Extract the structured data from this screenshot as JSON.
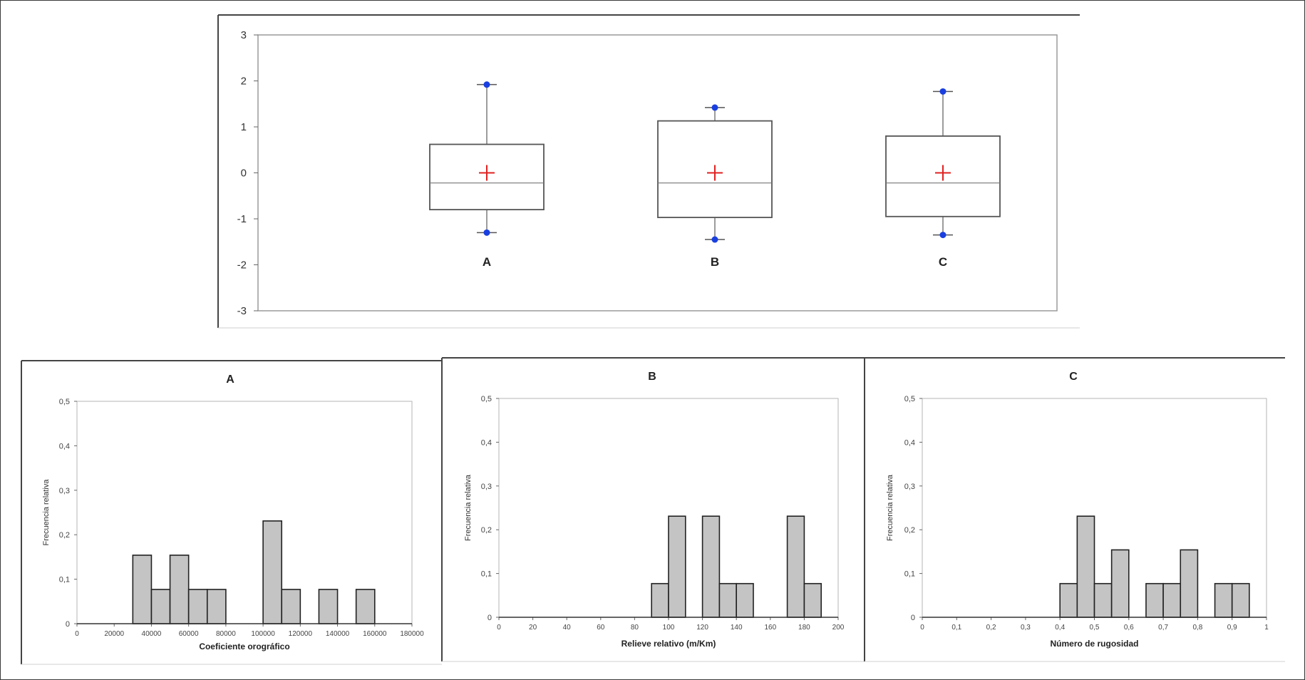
{
  "chart_data": [
    {
      "type": "box",
      "yticks": [
        "3",
        "2",
        "1",
        "0",
        "-1",
        "-2",
        "-3"
      ],
      "ylim": [
        -3,
        3
      ],
      "grid": false,
      "categories": [
        "A",
        "B",
        "C"
      ],
      "boxes": [
        {
          "label": "A",
          "min": -1.3,
          "q1": -0.8,
          "median": -0.22,
          "q3": 0.62,
          "max": 1.92,
          "mean": 0.0
        },
        {
          "label": "B",
          "min": -1.45,
          "q1": -0.97,
          "median": -0.22,
          "q3": 1.13,
          "max": 1.42,
          "mean": 0.0
        },
        {
          "label": "C",
          "min": -1.35,
          "q1": -0.95,
          "median": -0.22,
          "q3": 0.8,
          "max": 1.77,
          "mean": 0.0
        }
      ],
      "colors": {
        "whisker_end": "#1a3fe0",
        "mean_marker": "#e02020",
        "box": "#555555"
      }
    },
    {
      "type": "bar",
      "title": "A",
      "xlabel": "Coeficiente orográfico",
      "ylabel": "Frecuencia relativa",
      "yticks": [
        "0,5",
        "0,4",
        "0,3",
        "0,2",
        "0,1",
        "0"
      ],
      "ylim": [
        0,
        0.5
      ],
      "xticks": [
        "0",
        "20000",
        "40000",
        "60000",
        "80000",
        "100000",
        "120000",
        "140000",
        "160000",
        "180000"
      ],
      "xlim": [
        0,
        180000
      ],
      "bins": [
        {
          "x0": 30000,
          "x1": 40000,
          "value": 0.154
        },
        {
          "x0": 40000,
          "x1": 50000,
          "value": 0.077
        },
        {
          "x0": 50000,
          "x1": 60000,
          "value": 0.154
        },
        {
          "x0": 60000,
          "x1": 70000,
          "value": 0.077
        },
        {
          "x0": 70000,
          "x1": 80000,
          "value": 0.077
        },
        {
          "x0": 100000,
          "x1": 110000,
          "value": 0.231
        },
        {
          "x0": 110000,
          "x1": 120000,
          "value": 0.077
        },
        {
          "x0": 130000,
          "x1": 140000,
          "value": 0.077
        },
        {
          "x0": 150000,
          "x1": 160000,
          "value": 0.077
        }
      ]
    },
    {
      "type": "bar",
      "title": "B",
      "xlabel": "Relieve relativo (m/Km)",
      "ylabel": "Frecuencia relativa",
      "yticks": [
        "0,5",
        "0,4",
        "0,3",
        "0,2",
        "0,1",
        "0"
      ],
      "ylim": [
        0,
        0.5
      ],
      "xticks": [
        "0",
        "20",
        "40",
        "60",
        "80",
        "100",
        "120",
        "140",
        "160",
        "180",
        "200"
      ],
      "xlim": [
        0,
        200
      ],
      "bins": [
        {
          "x0": 90,
          "x1": 100,
          "value": 0.077
        },
        {
          "x0": 100,
          "x1": 110,
          "value": 0.231
        },
        {
          "x0": 120,
          "x1": 130,
          "value": 0.231
        },
        {
          "x0": 130,
          "x1": 140,
          "value": 0.077
        },
        {
          "x0": 140,
          "x1": 150,
          "value": 0.077
        },
        {
          "x0": 170,
          "x1": 180,
          "value": 0.231
        },
        {
          "x0": 180,
          "x1": 190,
          "value": 0.077
        }
      ]
    },
    {
      "type": "bar",
      "title": "C",
      "xlabel": "Número de rugosidad",
      "ylabel": "Frecuencia relativa",
      "yticks": [
        "0,5",
        "0,4",
        "0,3",
        "0,2",
        "0,1",
        "0"
      ],
      "ylim": [
        0,
        0.5
      ],
      "xticks": [
        "0",
        "0,1",
        "0,2",
        "0,3",
        "0,4",
        "0,5",
        "0,6",
        "0,7",
        "0,8",
        "0,9",
        "1"
      ],
      "xlim": [
        0,
        1
      ],
      "bins": [
        {
          "x0": 0.4,
          "x1": 0.45,
          "value": 0.077
        },
        {
          "x0": 0.45,
          "x1": 0.5,
          "value": 0.231
        },
        {
          "x0": 0.5,
          "x1": 0.55,
          "value": 0.077
        },
        {
          "x0": 0.55,
          "x1": 0.6,
          "value": 0.154
        },
        {
          "x0": 0.65,
          "x1": 0.7,
          "value": 0.077
        },
        {
          "x0": 0.7,
          "x1": 0.75,
          "value": 0.077
        },
        {
          "x0": 0.75,
          "x1": 0.8,
          "value": 0.154
        },
        {
          "x0": 0.85,
          "x1": 0.9,
          "value": 0.077
        },
        {
          "x0": 0.9,
          "x1": 0.95,
          "value": 0.077
        }
      ]
    }
  ]
}
